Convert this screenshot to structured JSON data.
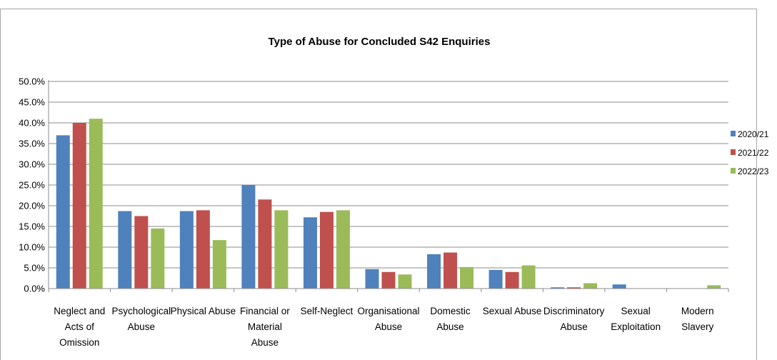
{
  "chart_data": {
    "type": "bar",
    "title": "Type of Abuse for Concluded S42 Enquiries",
    "xlabel": "",
    "ylabel": "",
    "ylim": [
      0,
      50
    ],
    "y_ticks": [
      "0.0%",
      "5.0%",
      "10.0%",
      "15.0%",
      "20.0%",
      "25.0%",
      "30.0%",
      "35.0%",
      "40.0%",
      "45.0%",
      "50.0%"
    ],
    "grid": true,
    "legend_position": "right",
    "categories": [
      [
        "Neglect and",
        "Acts of",
        "Omission"
      ],
      [
        "Psychological",
        "Abuse"
      ],
      [
        "Physical Abuse"
      ],
      [
        "Financial or",
        "Material",
        "Abuse"
      ],
      [
        "Self-Neglect"
      ],
      [
        "Organisational",
        "Abuse"
      ],
      [
        "Domestic",
        "Abuse"
      ],
      [
        "Sexual Abuse"
      ],
      [
        "Discriminatory",
        "Abuse"
      ],
      [
        "Sexual",
        "Exploitation"
      ],
      [
        "Modern",
        "Slavery"
      ]
    ],
    "series": [
      {
        "name": "2020/21",
        "color": "#4f81bd",
        "values": [
          37.0,
          18.7,
          18.7,
          25.0,
          17.2,
          4.7,
          8.3,
          4.5,
          0.3,
          1.0,
          0.0
        ]
      },
      {
        "name": "2021/22",
        "color": "#c0504d",
        "values": [
          40.0,
          17.5,
          18.9,
          21.5,
          18.5,
          4.0,
          8.7,
          4.0,
          0.3,
          0.0,
          0.0
        ]
      },
      {
        "name": "2022/23",
        "color": "#9bbb59",
        "values": [
          41.0,
          14.5,
          11.7,
          18.9,
          18.9,
          3.4,
          5.2,
          5.6,
          1.3,
          0.0,
          0.8
        ]
      }
    ]
  }
}
